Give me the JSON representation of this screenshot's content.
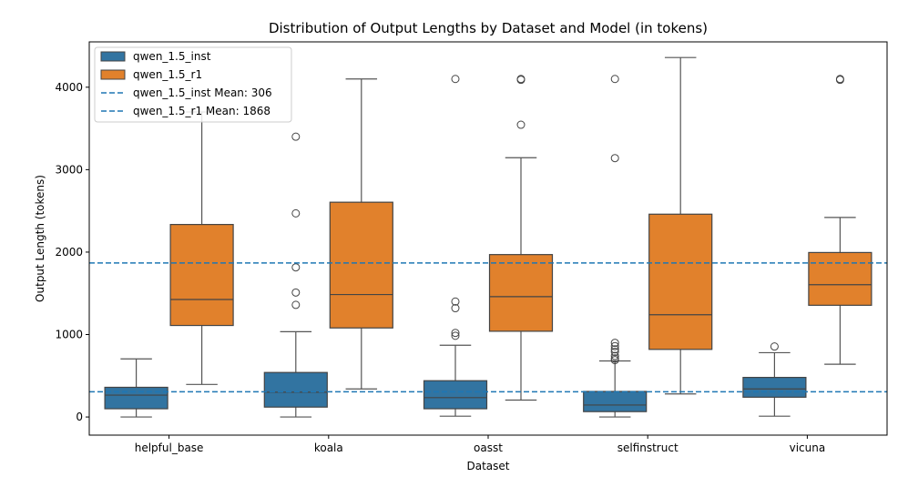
{
  "chart_data": {
    "type": "box",
    "title": "Distribution of Output Lengths by Dataset and Model (in tokens)",
    "xlabel": "Dataset",
    "ylabel": "Output Length (tokens)",
    "ylim": [
      -220,
      4550
    ],
    "yticks": [
      0,
      1000,
      2000,
      3000,
      4000
    ],
    "categories": [
      "helpful_base",
      "koala",
      "oasst",
      "selfinstruct",
      "vicuna"
    ],
    "grid": false,
    "legend_position": "top-left",
    "series": [
      {
        "name": "qwen_1.5_inst",
        "color": "#3274a1",
        "boxes": [
          {
            "whisker_low": 0,
            "q1": 100,
            "median": 265,
            "q3": 360,
            "whisker_high": 705,
            "outliers": []
          },
          {
            "whisker_low": 0,
            "q1": 120,
            "median": 300,
            "q3": 540,
            "whisker_high": 1035,
            "outliers": [
              1360,
              1510,
              1815,
              2470,
              3400
            ]
          },
          {
            "whisker_low": 10,
            "q1": 100,
            "median": 235,
            "q3": 440,
            "whisker_high": 870,
            "outliers": [
              985,
              1020,
              1320,
              1400,
              4100
            ]
          },
          {
            "whisker_low": 0,
            "q1": 65,
            "median": 145,
            "q3": 310,
            "whisker_high": 680,
            "outliers": [
              690,
              710,
              740,
              790,
              820,
              860,
              900,
              3140,
              4100
            ]
          },
          {
            "whisker_low": 10,
            "q1": 240,
            "median": 340,
            "q3": 480,
            "whisker_high": 780,
            "outliers": [
              855
            ]
          }
        ]
      },
      {
        "name": "qwen_1.5_r1",
        "color": "#e1812c",
        "boxes": [
          {
            "whisker_low": 395,
            "q1": 1110,
            "median": 1425,
            "q3": 2335,
            "whisker_high": 3700,
            "outliers": []
          },
          {
            "whisker_low": 340,
            "q1": 1080,
            "median": 1485,
            "q3": 2605,
            "whisker_high": 4100,
            "outliers": []
          },
          {
            "whisker_low": 205,
            "q1": 1040,
            "median": 1460,
            "q3": 1970,
            "whisker_high": 3145,
            "outliers": [
              3545,
              4090,
              4100
            ]
          },
          {
            "whisker_low": 280,
            "q1": 820,
            "median": 1240,
            "q3": 2460,
            "whisker_high": 4360,
            "outliers": []
          },
          {
            "whisker_low": 640,
            "q1": 1355,
            "median": 1605,
            "q3": 1995,
            "whisker_high": 2420,
            "outliers": [
              4090,
              4100
            ]
          }
        ]
      }
    ],
    "reference_lines": [
      {
        "name": "qwen_1.5_inst Mean: 306",
        "value": 306,
        "color": "#1f77b4",
        "style": "dashed"
      },
      {
        "name": "qwen_1.5_r1 Mean: 1868",
        "value": 1868,
        "color": "#1f77b4",
        "style": "dashed"
      }
    ]
  }
}
